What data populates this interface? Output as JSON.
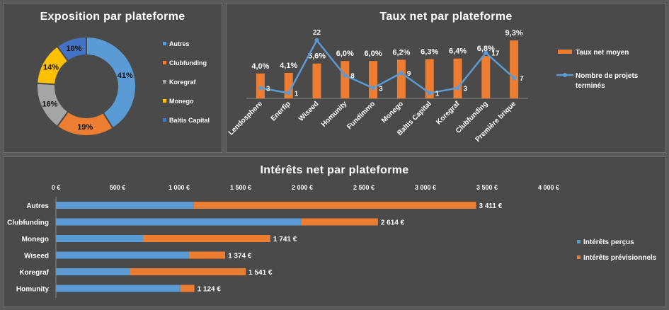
{
  "chart_data": [
    {
      "type": "pie",
      "title": "Exposition par plateforme",
      "donut": true,
      "categories": [
        "Autres",
        "Clubfunding",
        "Koregraf",
        "Monego",
        "Baltis Capital"
      ],
      "values": [
        41,
        19,
        16,
        14,
        10
      ],
      "labels": [
        "41%",
        "19%",
        "16%",
        "14%",
        "10%"
      ],
      "colors": [
        "#5b9bd5",
        "#ed7d31",
        "#a5a5a5",
        "#ffc000",
        "#4472c4"
      ],
      "legend": "right"
    },
    {
      "type": "bar",
      "title": "Taux net par plateforme",
      "categories": [
        "Lendosphere",
        "Enerfip",
        "Wiseed",
        "Homunity",
        "Fundimmo",
        "Monego",
        "Baltis Capital",
        "Koregraf",
        "Clubfunding",
        "Première brique"
      ],
      "series": [
        {
          "name": "Taux net moyen",
          "type": "bar",
          "color": "#ed7d31",
          "values": [
            4.0,
            4.1,
            5.6,
            6.0,
            6.0,
            6.2,
            6.3,
            6.4,
            6.8,
            9.3
          ],
          "labels": [
            "4,0%",
            "4,1%",
            "5,6%",
            "6,0%",
            "6,0%",
            "6,2%",
            "6,3%",
            "6,4%",
            "6,8%",
            "9,3%"
          ]
        },
        {
          "name": "Nombre de projets terminés",
          "type": "line",
          "color": "#5b9bd5",
          "values": [
            3,
            1,
            22,
            8,
            3,
            9,
            1,
            3,
            17,
            7
          ],
          "labels": [
            "3",
            "1",
            "22",
            "8",
            "3",
            "9",
            "1",
            "3",
            "17",
            "7"
          ]
        }
      ],
      "legend": "right"
    },
    {
      "type": "bar",
      "orientation": "horizontal",
      "stacked": true,
      "title": "Intérêts net par plateforme",
      "categories": [
        "Autres",
        "Clubfunding",
        "Monego",
        "Wiseed",
        "Koregraf",
        "Homunity"
      ],
      "series": [
        {
          "name": "Intérêts perçus",
          "color": "#5b9bd5",
          "values": [
            1120,
            1990,
            710,
            1080,
            600,
            1010
          ]
        },
        {
          "name": "Intérêts prévisionnels",
          "color": "#ed7d31",
          "values": [
            2291,
            624,
            1031,
            294,
            941,
            114
          ]
        }
      ],
      "totals": [
        3411,
        2614,
        1741,
        1374,
        1541,
        1124
      ],
      "total_labels": [
        "3 411 €",
        "2 614 €",
        "1 741 €",
        "1 374 €",
        "1 541 €",
        "1 124 €"
      ],
      "xlim": [
        0,
        4000
      ],
      "xticks": [
        0,
        500,
        1000,
        1500,
        2000,
        2500,
        3000,
        3500,
        4000
      ],
      "xtick_labels": [
        "0 €",
        "500 €",
        "1 000 €",
        "1 500 €",
        "2 000 €",
        "2 500 €",
        "3 000 €",
        "3 500 €",
        "4 000 €"
      ],
      "legend": "right"
    }
  ]
}
